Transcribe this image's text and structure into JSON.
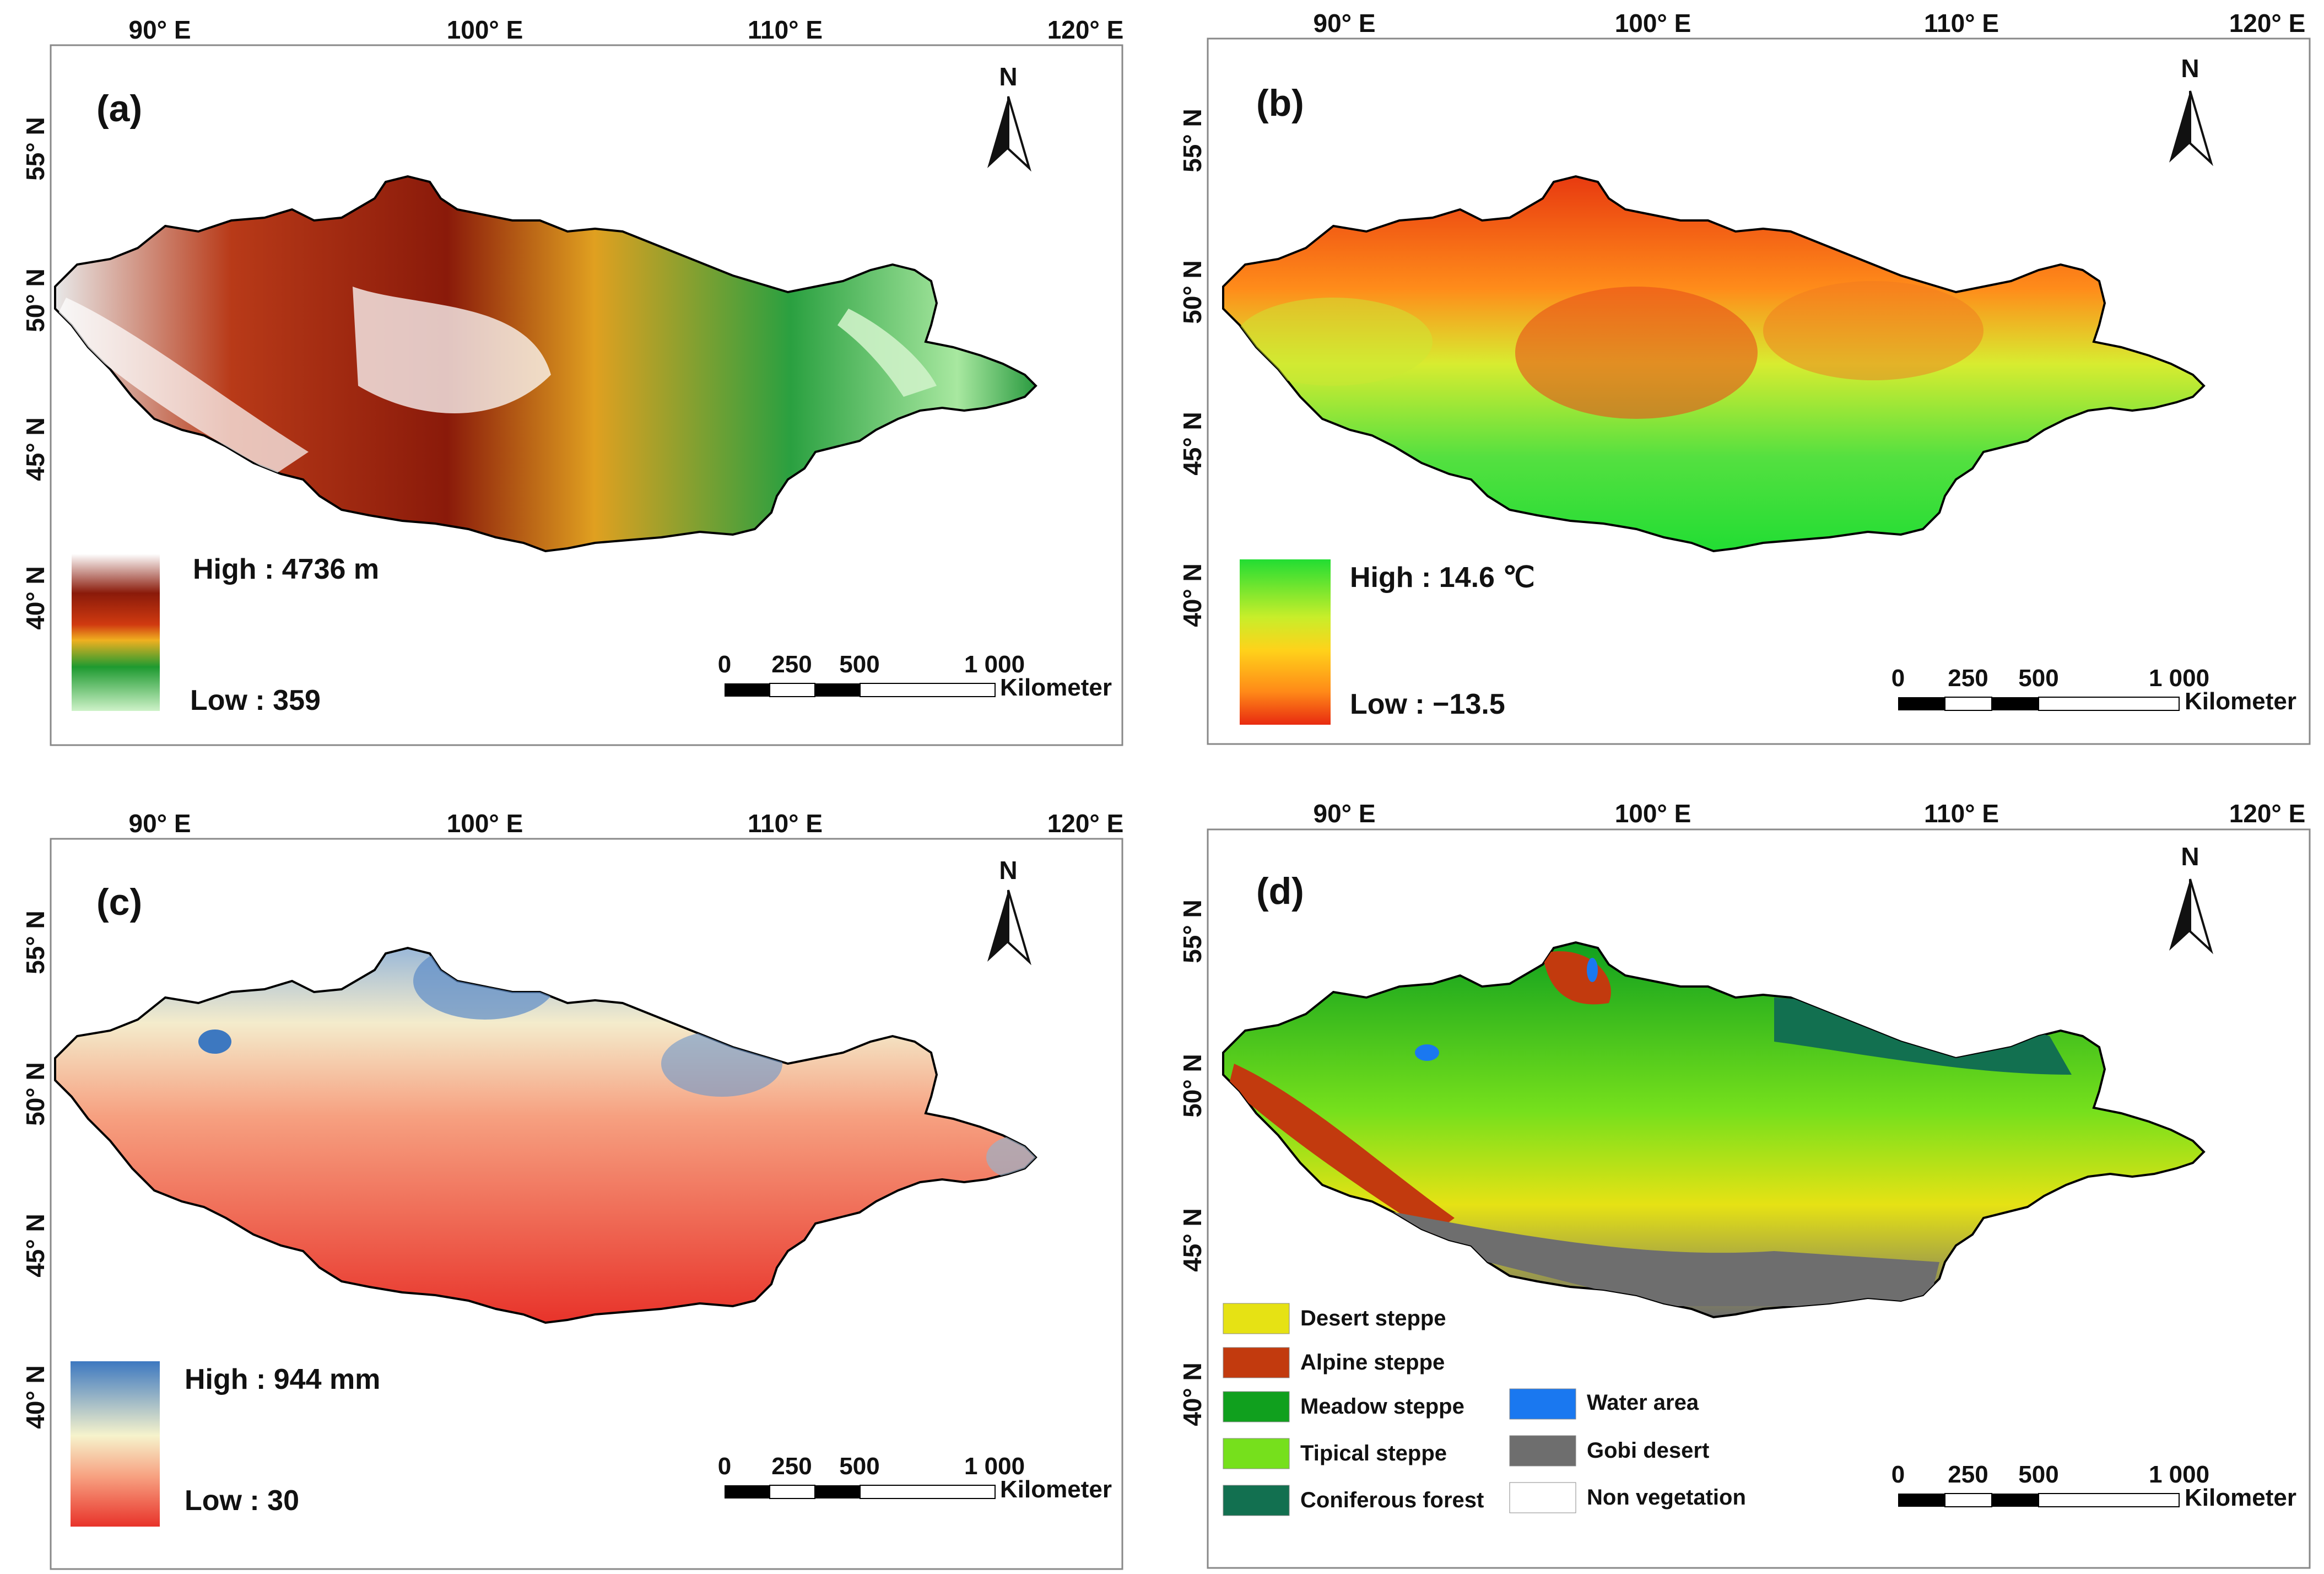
{
  "figure": {
    "panels": [
      {
        "id": "a",
        "label": "(a)",
        "lon_ticks": [
          "90° E",
          "100° E",
          "110° E",
          "120° E"
        ],
        "lat_ticks": [
          "55° N",
          "50° N",
          "45° N",
          "40° N"
        ],
        "north": "N",
        "legend": {
          "high": "High : 4736 m",
          "low": "Low : 359",
          "colors": [
            "#ffffff",
            "#8a1a0a",
            "#d03a10",
            "#f0b020",
            "#1e9a30",
            "#cef2c8"
          ]
        },
        "scale_bar": {
          "labels": [
            "0",
            "250",
            "500",
            "1 000"
          ],
          "unit": "Kilometer"
        }
      },
      {
        "id": "b",
        "label": "(b)",
        "lon_ticks": [
          "90° E",
          "100° E",
          "110° E",
          "120° E"
        ],
        "lat_ticks": [
          "55° N",
          "50° N",
          "45° N",
          "40° N"
        ],
        "north": "N",
        "legend": {
          "high": "High : 14.6 ℃",
          "low": "Low : −13.5",
          "colors": [
            "#22dd33",
            "#c8ee2a",
            "#ffd21a",
            "#ff8a18",
            "#e82a10"
          ]
        },
        "scale_bar": {
          "labels": [
            "0",
            "250",
            "500",
            "1 000"
          ],
          "unit": "Kilometer"
        }
      },
      {
        "id": "c",
        "label": "(c)",
        "lon_ticks": [
          "90° E",
          "100° E",
          "110° E",
          "120° E"
        ],
        "lat_ticks": [
          "55° N",
          "50° N",
          "45° N",
          "40° N"
        ],
        "north": "N",
        "legend": {
          "high": "High : 944 mm",
          "low": "Low : 30",
          "colors": [
            "#3d78c0",
            "#f6f3cc",
            "#f7a080",
            "#e8332a"
          ]
        },
        "scale_bar": {
          "labels": [
            "0",
            "250",
            "500",
            "1 000"
          ],
          "unit": "Kilometer"
        }
      },
      {
        "id": "d",
        "label": "(d)",
        "lon_ticks": [
          "90° E",
          "100° E",
          "110° E",
          "120° E"
        ],
        "lat_ticks": [
          "55° N",
          "50° N",
          "45° N",
          "40° N"
        ],
        "north": "N",
        "classes": [
          {
            "name": "Desert steppe",
            "color": "#e6e214"
          },
          {
            "name": "Alpine steppe",
            "color": "#c23a0e"
          },
          {
            "name": "Meadow steppe",
            "color": "#10a01e"
          },
          {
            "name": "Tipical steppe",
            "color": "#76e01c"
          },
          {
            "name": "Coniferous forest",
            "color": "#127050"
          },
          {
            "name": "Water area",
            "color": "#1a78f0"
          },
          {
            "name": "Gobi desert",
            "color": "#6e6e6e"
          },
          {
            "name": "Non vegetation",
            "color": "#ffffff"
          }
        ],
        "scale_bar": {
          "labels": [
            "0",
            "250",
            "500",
            "1 000"
          ],
          "unit": "Kilometer"
        }
      }
    ]
  }
}
